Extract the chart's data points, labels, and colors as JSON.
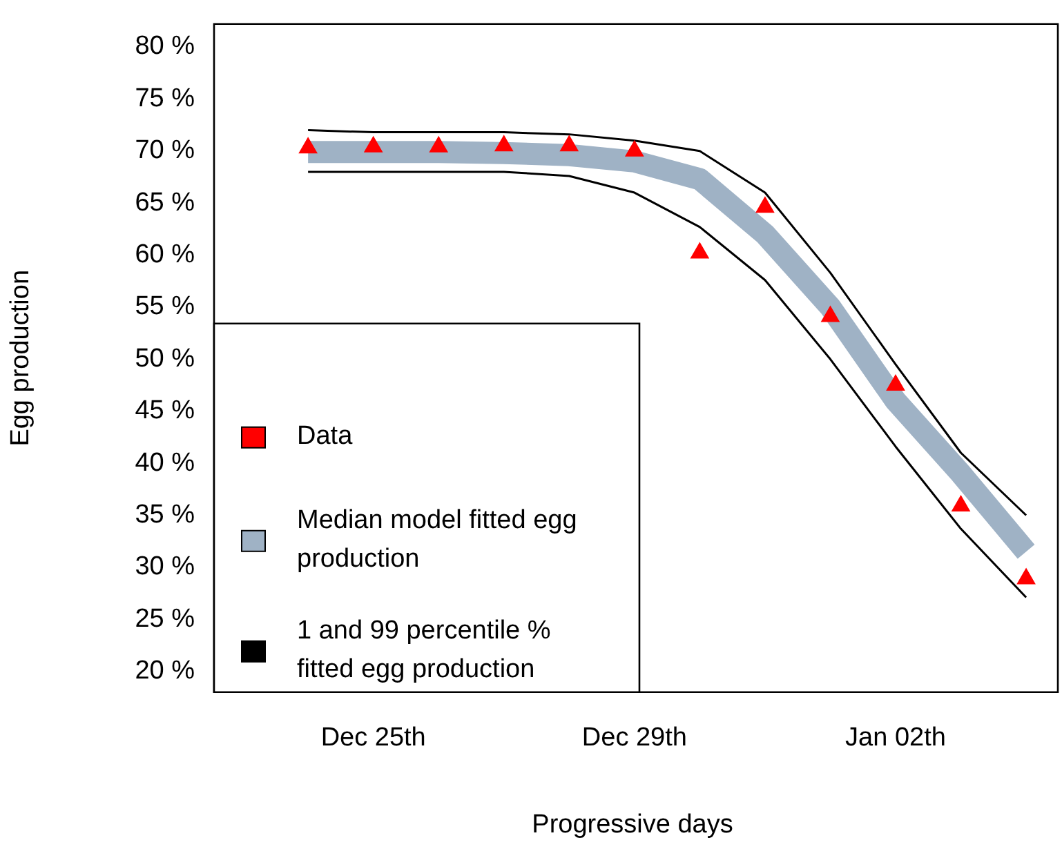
{
  "chart_data": {
    "type": "line",
    "xlabel": "Progressive days",
    "ylabel": "Egg production",
    "categories": [
      null,
      "Dec 25th",
      null,
      null,
      null,
      "Dec 29th",
      null,
      null,
      null,
      "Jan 02th",
      null,
      null
    ],
    "series": [
      {
        "name": "Data",
        "type": "scatter",
        "color": "#ff0000",
        "marker": "triangle",
        "values": [
          70.3,
          70.4,
          70.4,
          70.5,
          70.5,
          70.0,
          60.2,
          64.6,
          54.1,
          47.5,
          35.9,
          28.9
        ]
      },
      {
        "name": "Median model fitted egg production",
        "color": "#9fb2c5",
        "values": [
          69.9,
          69.9,
          69.9,
          69.8,
          69.6,
          69.0,
          67.3,
          62.0,
          55.0,
          46.0,
          39.0,
          31.5
        ]
      },
      {
        "name": "1 and 99 percentile % fitted egg production",
        "color": "#000000",
        "values": [
          72.0,
          71.8,
          71.8,
          71.8,
          71.6,
          71.0,
          70.0,
          66.0,
          58.3,
          49.5,
          41.0,
          35.0
        ]
      },
      {
        "color": "#000000",
        "values": [
          68.0,
          68.0,
          68.0,
          68.0,
          67.6,
          66.0,
          62.7,
          57.6,
          50.0,
          41.6,
          33.7,
          27.1
        ]
      }
    ],
    "ylim": [
      18,
      82.2
    ],
    "yticks": [
      {
        "value": 20,
        "label": "20 %"
      },
      {
        "value": 25,
        "label": "25 %"
      },
      {
        "value": 30,
        "label": "30 %"
      },
      {
        "value": 35,
        "label": "35 %"
      },
      {
        "value": 40,
        "label": "40 %"
      },
      {
        "value": 45,
        "label": "45 %"
      },
      {
        "value": 50,
        "label": "50 %"
      },
      {
        "value": 55,
        "label": "55 %"
      },
      {
        "value": 60,
        "label": "60 %"
      },
      {
        "value": 65,
        "label": "65 %"
      },
      {
        "value": 70,
        "label": "70 %"
      },
      {
        "value": 75,
        "label": "75 %"
      },
      {
        "value": 80,
        "label": "80 %"
      }
    ],
    "grid": false,
    "legend": "bottom left"
  }
}
